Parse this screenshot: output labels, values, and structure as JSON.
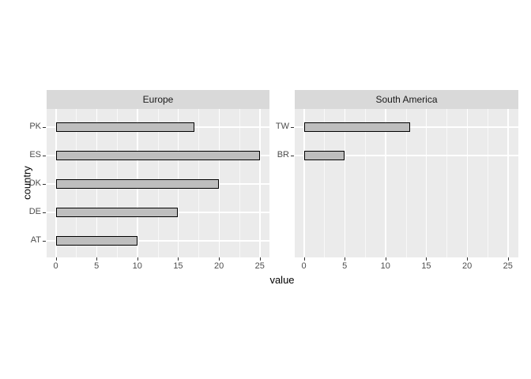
{
  "chart_data": {
    "type": "bar",
    "orientation": "horizontal",
    "xlabel": "value",
    "ylabel": "country",
    "xlim": [
      0,
      25
    ],
    "x_major_ticks": [
      0,
      5,
      10,
      15,
      20,
      25
    ],
    "x_minor_ticks": [
      2.5,
      7.5,
      12.5,
      17.5,
      22.5
    ],
    "slots_per_panel": 5,
    "grid": true,
    "legend": "none",
    "facets": [
      {
        "label": "Europe",
        "categories": [
          "PK",
          "ES",
          "DK",
          "DE",
          "AT"
        ],
        "values": [
          17,
          25,
          20,
          15,
          10
        ]
      },
      {
        "label": "South America",
        "categories": [
          "TW",
          "BR"
        ],
        "values": [
          13,
          5
        ]
      }
    ]
  },
  "style": {
    "strip_bg": "#d9d9d9",
    "strip_text_color": "#1a1a1a",
    "panel_bg": "#ebebeb",
    "grid_major_color": "#ffffff",
    "grid_minor_color": "rgba(255,255,255,0.65)",
    "bar_fill": "#bebebe",
    "bar_stroke": "#000000",
    "tick_label_color": "#4d4d4d",
    "tick_mark_color": "#333333",
    "axis_title_color": "#000000"
  }
}
